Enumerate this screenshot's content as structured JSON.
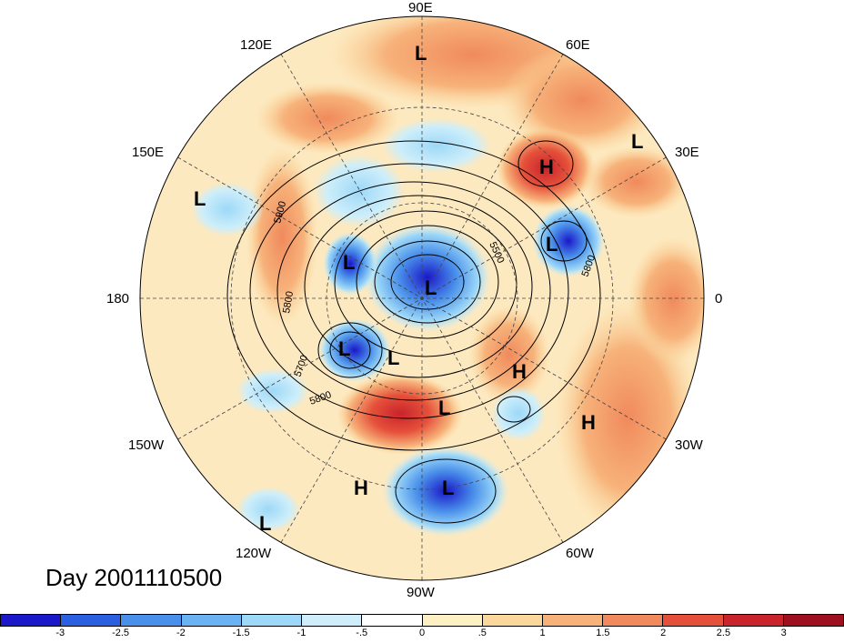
{
  "title": "Day 2001110500",
  "longitude_labels": {
    "e90": "90E",
    "e60": "60E",
    "e30": "30E",
    "zero": "0",
    "w30": "30W",
    "w60": "60W",
    "w90": "90W",
    "w120": "120W",
    "w150": "150W",
    "d180": "180",
    "e150": "150E",
    "e120": "120E"
  },
  "contour_labels": [
    "5900",
    "5800",
    "5700",
    "5800",
    "5500",
    "5800"
  ],
  "pressure_centers": [
    "L",
    "H",
    "L",
    "L",
    "L",
    "L",
    "L",
    "L",
    "L",
    "H",
    "L",
    "H",
    "H",
    "L",
    "L"
  ],
  "colorbar": {
    "colors": [
      "#1a18c8",
      "#2a5fe0",
      "#4a90ea",
      "#6bb2f2",
      "#9dd8f8",
      "#cdeefa",
      "#ffffff",
      "#fdf1c4",
      "#fad79a",
      "#f7b27a",
      "#f08a5d",
      "#e5503a",
      "#c9232c",
      "#9e0f1f"
    ],
    "labels": [
      "-3",
      "-2.5",
      "-2",
      "-1.5",
      "-1",
      "-.5",
      "0",
      ".5",
      "1",
      "1.5",
      "2",
      "2.5",
      "3"
    ]
  }
}
